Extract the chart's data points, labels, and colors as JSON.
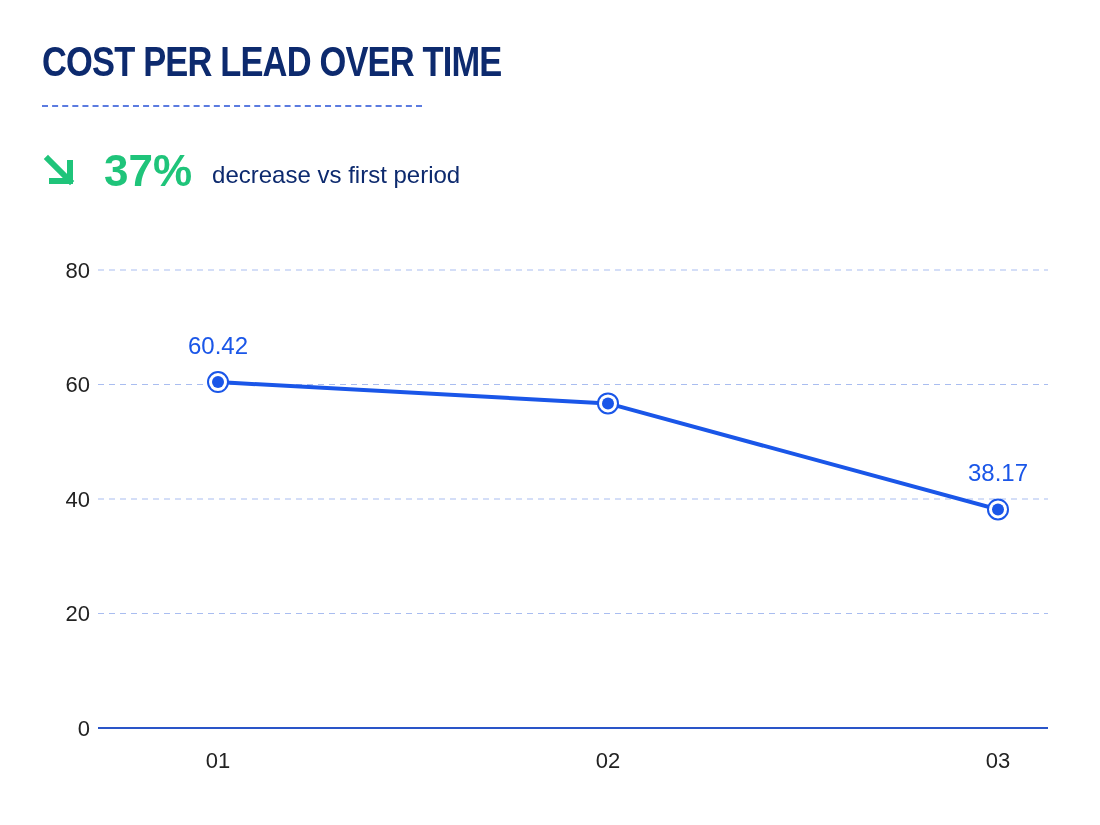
{
  "chart_data": {
    "type": "line",
    "title": "COST PER LEAD OVER TIME",
    "annotations": [
      "37%",
      "decrease vs first period"
    ],
    "categories": [
      "01",
      "02",
      "03"
    ],
    "series": [
      {
        "color": "#1a56e8",
        "values": [
          60.42,
          56.7,
          38.17
        ],
        "value_labels": [
          "60.42",
          null,
          "38.17"
        ]
      }
    ],
    "ylim": [
      0,
      80
    ],
    "yticks": [
      0,
      20,
      40,
      60,
      80
    ],
    "grid": "y",
    "marker": "circle",
    "line_style": "solid"
  }
}
